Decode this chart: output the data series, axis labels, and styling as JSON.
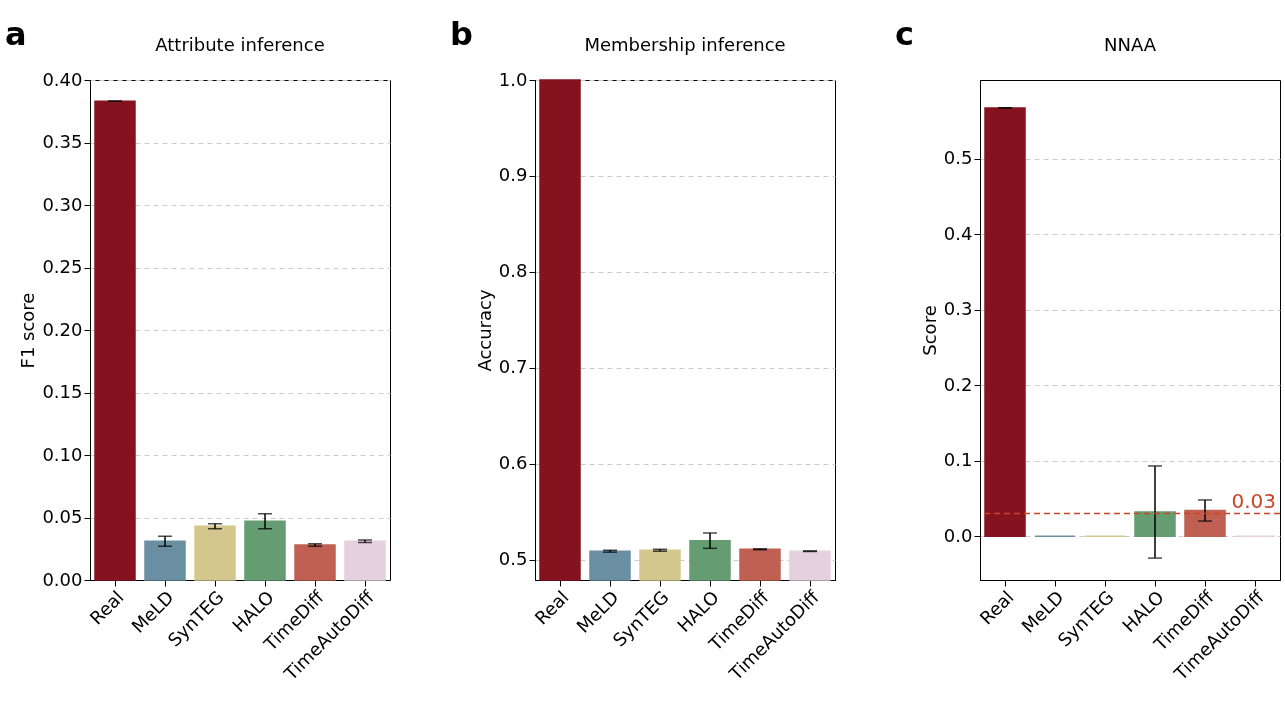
{
  "chart_data": [
    {
      "type": "bar",
      "title": "Attribute inference",
      "ylabel": "F1 score",
      "annotations": [
        "a"
      ],
      "categories": [
        "Real",
        "MeLD",
        "SynTEG",
        "HALO",
        "TimeDiff",
        "TimeAutoDiff"
      ],
      "values": [
        0.383,
        0.031,
        0.043,
        0.047,
        0.028,
        0.031
      ],
      "errors": [
        0,
        0.004,
        0.002,
        0.006,
        0.001,
        0.001
      ],
      "colors": [
        "#85131f",
        "#6a8fa3",
        "#d4c78e",
        "#669c72",
        "#c06052",
        "#e4d0de"
      ],
      "ylim": [
        0,
        0.4
      ],
      "yticks": [
        {
          "value": 0,
          "label": "0.00"
        },
        0.05,
        {
          "value": 0.1,
          "label": "0.10"
        },
        0.15,
        {
          "value": 0.2,
          "label": "0.20"
        },
        0.25,
        {
          "value": 0.3,
          "label": "0.30"
        },
        0.35,
        {
          "value": 0.4,
          "label": "0.40"
        }
      ],
      "grid": "y",
      "legend": false
    },
    {
      "type": "bar",
      "title": "Membership inference",
      "ylabel": "Accuracy",
      "annotations": [
        "b"
      ],
      "categories": [
        "Real",
        "MeLD",
        "SynTEG",
        "HALO",
        "TimeDiff",
        "TimeAutoDiff"
      ],
      "values": [
        1.0,
        0.509,
        0.51,
        0.52,
        0.511,
        0.509
      ],
      "errors": [
        null,
        0.001,
        0.001,
        0.008,
        0.0005,
        0.0003
      ],
      "colors": [
        "#85131f",
        "#6a8fa3",
        "#d4c78e",
        "#669c72",
        "#c06052",
        "#e4d0de"
      ],
      "ylim": [
        0.479,
        1.0
      ],
      "yticks": [
        0.5,
        0.6,
        0.7,
        0.8,
        0.9,
        {
          "value": 1,
          "label": "1.0"
        }
      ],
      "grid": "y",
      "legend": false
    },
    {
      "type": "bar",
      "title": "NNAA",
      "ylabel": "Score",
      "annotations": [
        "c"
      ],
      "categories": [
        "Real",
        "MeLD",
        "SynTEG",
        "HALO",
        "TimeDiff",
        "TimeAutoDiff"
      ],
      "values": [
        0.567,
        0,
        0,
        0.032,
        0.034,
        0
      ],
      "errors": [
        0,
        null,
        null,
        0.061,
        0.014,
        null
      ],
      "colors": [
        "#85131f",
        "#6a8fa3",
        "#d4c78e",
        "#669c72",
        "#c06052",
        "#e4d0de"
      ],
      "ylim": [
        -0.058,
        0.604
      ],
      "yticks": [
        {
          "value": 0,
          "label": "0.0"
        },
        0.1,
        0.2,
        0.3,
        0.4,
        0.5
      ],
      "grid": "y",
      "legend": false,
      "ref_lines": [
        {
          "axis": "y",
          "value": 0.03,
          "label": "0.03",
          "color": "#c8452a",
          "line_style": "dashed"
        }
      ]
    }
  ]
}
